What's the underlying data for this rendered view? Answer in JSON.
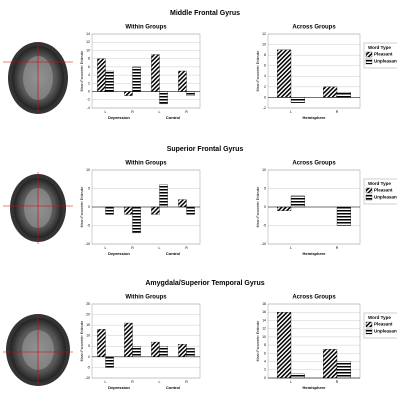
{
  "section_titles": [
    "Middle Frontal Gyrus",
    "Superior Frontal Gyrus",
    "Amygdala/Superior Temporal Gyrus"
  ],
  "chart_data": [
    {
      "type": "bar",
      "title": "Within Groups",
      "ylabel": "Mean Parameter Estimate",
      "categories": [
        "L",
        "R",
        "L",
        "R"
      ],
      "groups": [
        "Depression",
        "Control"
      ],
      "series": [
        {
          "name": "Pleasant",
          "color": "#000000",
          "values": [
            8,
            -1,
            9,
            5
          ]
        },
        {
          "name": "Unpleasant",
          "color": "#000000",
          "values": [
            5,
            6,
            -3,
            -1
          ]
        }
      ],
      "ylim": [
        -4,
        14
      ],
      "yticks": [
        -4,
        -2,
        0,
        2,
        4,
        6,
        8,
        10,
        12,
        14
      ],
      "grid": true
    },
    {
      "type": "bar",
      "title": "Across Groups",
      "ylabel": "Mean Parameter Estimate",
      "xlabel": "Hemisphere",
      "categories": [
        "L",
        "R"
      ],
      "legend_title": "Word Type",
      "series": [
        {
          "name": "Pleasant",
          "color": "#000000",
          "values": [
            9,
            2
          ]
        },
        {
          "name": "Unpleasant",
          "color": "#000000",
          "values": [
            -1,
            1
          ]
        }
      ],
      "ylim": [
        -2,
        12
      ],
      "yticks": [
        -2,
        0,
        2,
        4,
        6,
        8,
        10,
        12
      ],
      "grid": true
    },
    {
      "type": "bar",
      "title": "Within Groups",
      "ylabel": "Mean Parameter Estimate",
      "categories": [
        "L",
        "R",
        "L",
        "R"
      ],
      "groups": [
        "Depression",
        "Control"
      ],
      "series": [
        {
          "name": "Pleasant",
          "color": "#000000",
          "values": [
            0,
            -2,
            -2,
            2
          ]
        },
        {
          "name": "Unpleasant",
          "color": "#000000",
          "values": [
            -2,
            -7,
            6,
            -2
          ]
        }
      ],
      "ylim": [
        -10,
        10
      ],
      "yticks": [
        -10,
        -5,
        0,
        5,
        10
      ],
      "grid": true
    },
    {
      "type": "bar",
      "title": "Across Groups",
      "ylabel": "Mean Parameter Estimate",
      "xlabel": "Hemisphere",
      "categories": [
        "L",
        "R"
      ],
      "legend_title": "Word Type",
      "series": [
        {
          "name": "Pleasant",
          "color": "#000000",
          "values": [
            -1,
            0
          ]
        },
        {
          "name": "Unpleasant",
          "color": "#000000",
          "values": [
            3,
            -5
          ]
        }
      ],
      "ylim": [
        -10,
        10
      ],
      "yticks": [
        -10,
        -5,
        0,
        5,
        10
      ],
      "grid": true
    },
    {
      "type": "bar",
      "title": "Within Groups",
      "ylabel": "Mean Parameter Estimate",
      "categories": [
        "L",
        "R",
        "L",
        "R"
      ],
      "groups": [
        "Depression",
        "Control"
      ],
      "series": [
        {
          "name": "Pleasant",
          "color": "#000000",
          "values": [
            13,
            16,
            7,
            6
          ]
        },
        {
          "name": "Unpleasant",
          "color": "#000000",
          "values": [
            -5,
            5,
            5,
            4
          ]
        }
      ],
      "ylim": [
        -10,
        25
      ],
      "yticks": [
        -10,
        -5,
        0,
        5,
        10,
        15,
        20,
        25
      ],
      "grid": true
    },
    {
      "type": "bar",
      "title": "Across Groups",
      "ylabel": "Mean Parameter Estimate",
      "xlabel": "Hemisphere",
      "categories": [
        "L",
        "R"
      ],
      "legend_title": "Word Type",
      "series": [
        {
          "name": "Pleasant",
          "color": "#000000",
          "values": [
            16,
            7
          ]
        },
        {
          "name": "Unpleasant",
          "color": "#000000",
          "values": [
            1,
            4
          ]
        }
      ],
      "ylim": [
        0,
        18
      ],
      "yticks": [
        0,
        2,
        4,
        6,
        8,
        10,
        12,
        14,
        16,
        18
      ],
      "grid": true
    }
  ]
}
